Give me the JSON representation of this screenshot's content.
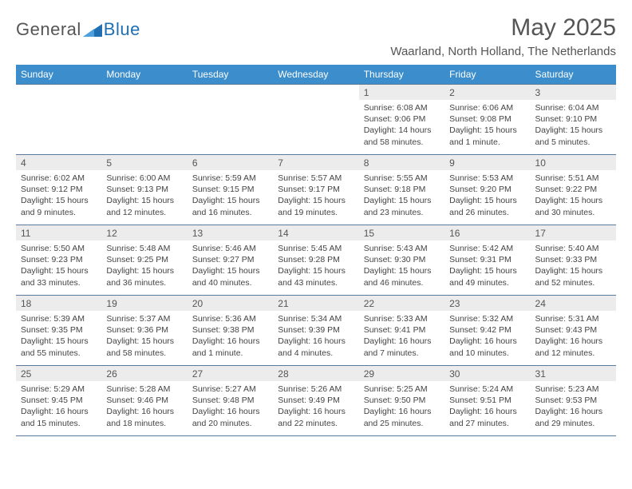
{
  "logo": {
    "text_left": "General",
    "text_right": "Blue"
  },
  "title": "May 2025",
  "location": "Waarland, North Holland, The Netherlands",
  "colors": {
    "header_bg": "#3b8dcb",
    "header_text": "#ffffff",
    "border": "#5a7a99",
    "daynum_bg": "#ececec",
    "text": "#444444",
    "title_text": "#555555",
    "logo_accent": "#1f6fb2"
  },
  "weekdays": [
    "Sunday",
    "Monday",
    "Tuesday",
    "Wednesday",
    "Thursday",
    "Friday",
    "Saturday"
  ],
  "weeks": [
    [
      null,
      null,
      null,
      null,
      {
        "n": "1",
        "sr": "6:08 AM",
        "ss": "9:06 PM",
        "dl": "14 hours and 58 minutes."
      },
      {
        "n": "2",
        "sr": "6:06 AM",
        "ss": "9:08 PM",
        "dl": "15 hours and 1 minute."
      },
      {
        "n": "3",
        "sr": "6:04 AM",
        "ss": "9:10 PM",
        "dl": "15 hours and 5 minutes."
      }
    ],
    [
      {
        "n": "4",
        "sr": "6:02 AM",
        "ss": "9:12 PM",
        "dl": "15 hours and 9 minutes."
      },
      {
        "n": "5",
        "sr": "6:00 AM",
        "ss": "9:13 PM",
        "dl": "15 hours and 12 minutes."
      },
      {
        "n": "6",
        "sr": "5:59 AM",
        "ss": "9:15 PM",
        "dl": "15 hours and 16 minutes."
      },
      {
        "n": "7",
        "sr": "5:57 AM",
        "ss": "9:17 PM",
        "dl": "15 hours and 19 minutes."
      },
      {
        "n": "8",
        "sr": "5:55 AM",
        "ss": "9:18 PM",
        "dl": "15 hours and 23 minutes."
      },
      {
        "n": "9",
        "sr": "5:53 AM",
        "ss": "9:20 PM",
        "dl": "15 hours and 26 minutes."
      },
      {
        "n": "10",
        "sr": "5:51 AM",
        "ss": "9:22 PM",
        "dl": "15 hours and 30 minutes."
      }
    ],
    [
      {
        "n": "11",
        "sr": "5:50 AM",
        "ss": "9:23 PM",
        "dl": "15 hours and 33 minutes."
      },
      {
        "n": "12",
        "sr": "5:48 AM",
        "ss": "9:25 PM",
        "dl": "15 hours and 36 minutes."
      },
      {
        "n": "13",
        "sr": "5:46 AM",
        "ss": "9:27 PM",
        "dl": "15 hours and 40 minutes."
      },
      {
        "n": "14",
        "sr": "5:45 AM",
        "ss": "9:28 PM",
        "dl": "15 hours and 43 minutes."
      },
      {
        "n": "15",
        "sr": "5:43 AM",
        "ss": "9:30 PM",
        "dl": "15 hours and 46 minutes."
      },
      {
        "n": "16",
        "sr": "5:42 AM",
        "ss": "9:31 PM",
        "dl": "15 hours and 49 minutes."
      },
      {
        "n": "17",
        "sr": "5:40 AM",
        "ss": "9:33 PM",
        "dl": "15 hours and 52 minutes."
      }
    ],
    [
      {
        "n": "18",
        "sr": "5:39 AM",
        "ss": "9:35 PM",
        "dl": "15 hours and 55 minutes."
      },
      {
        "n": "19",
        "sr": "5:37 AM",
        "ss": "9:36 PM",
        "dl": "15 hours and 58 minutes."
      },
      {
        "n": "20",
        "sr": "5:36 AM",
        "ss": "9:38 PM",
        "dl": "16 hours and 1 minute."
      },
      {
        "n": "21",
        "sr": "5:34 AM",
        "ss": "9:39 PM",
        "dl": "16 hours and 4 minutes."
      },
      {
        "n": "22",
        "sr": "5:33 AM",
        "ss": "9:41 PM",
        "dl": "16 hours and 7 minutes."
      },
      {
        "n": "23",
        "sr": "5:32 AM",
        "ss": "9:42 PM",
        "dl": "16 hours and 10 minutes."
      },
      {
        "n": "24",
        "sr": "5:31 AM",
        "ss": "9:43 PM",
        "dl": "16 hours and 12 minutes."
      }
    ],
    [
      {
        "n": "25",
        "sr": "5:29 AM",
        "ss": "9:45 PM",
        "dl": "16 hours and 15 minutes."
      },
      {
        "n": "26",
        "sr": "5:28 AM",
        "ss": "9:46 PM",
        "dl": "16 hours and 18 minutes."
      },
      {
        "n": "27",
        "sr": "5:27 AM",
        "ss": "9:48 PM",
        "dl": "16 hours and 20 minutes."
      },
      {
        "n": "28",
        "sr": "5:26 AM",
        "ss": "9:49 PM",
        "dl": "16 hours and 22 minutes."
      },
      {
        "n": "29",
        "sr": "5:25 AM",
        "ss": "9:50 PM",
        "dl": "16 hours and 25 minutes."
      },
      {
        "n": "30",
        "sr": "5:24 AM",
        "ss": "9:51 PM",
        "dl": "16 hours and 27 minutes."
      },
      {
        "n": "31",
        "sr": "5:23 AM",
        "ss": "9:53 PM",
        "dl": "16 hours and 29 minutes."
      }
    ]
  ],
  "labels": {
    "sunrise": "Sunrise: ",
    "sunset": "Sunset: ",
    "daylight": "Daylight: "
  }
}
